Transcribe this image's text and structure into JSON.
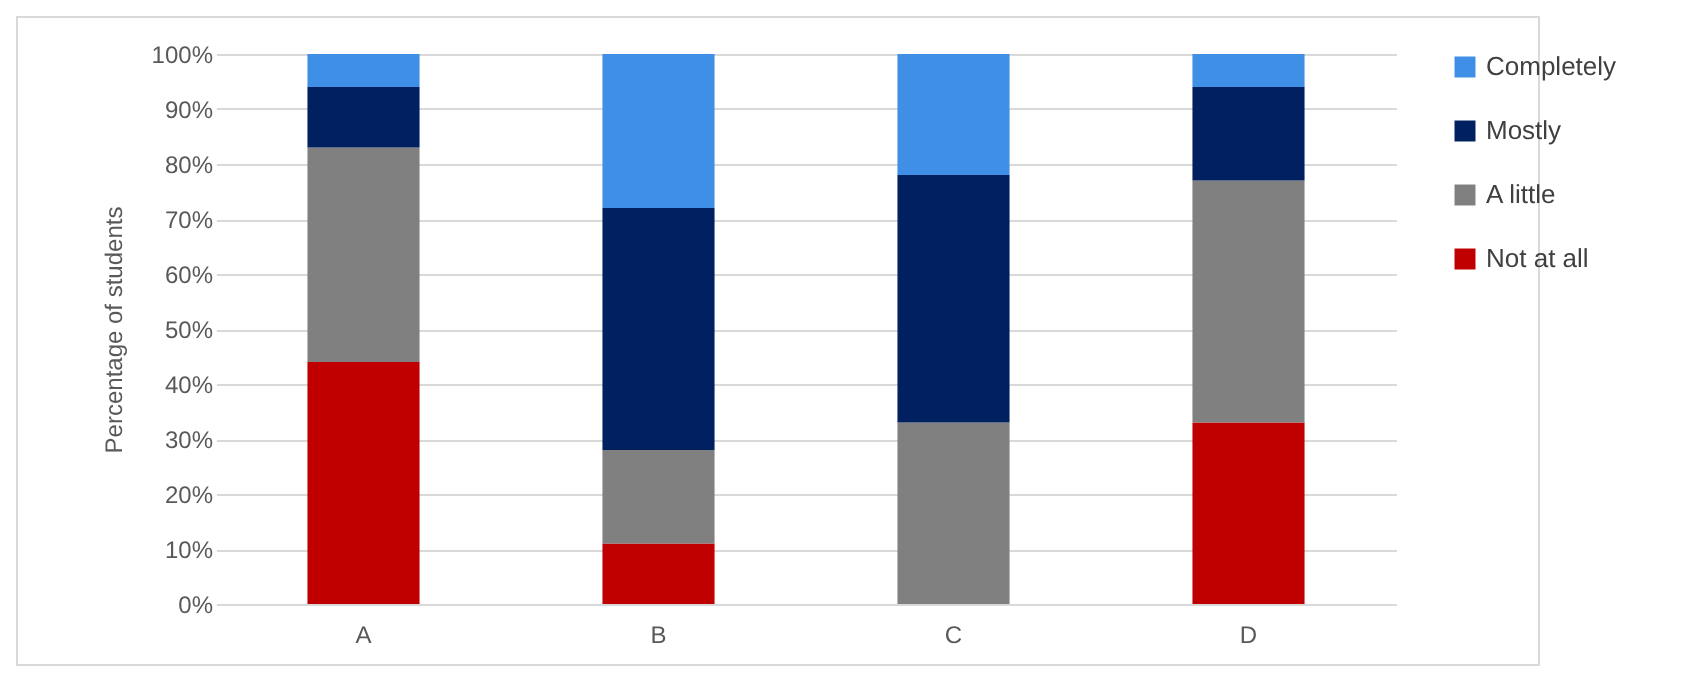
{
  "chart_data": {
    "type": "bar",
    "stacked": true,
    "ylabel": "Percentage of students",
    "categories": [
      "A",
      "B",
      "C",
      "D"
    ],
    "series": [
      {
        "name": "Not at all",
        "color": "#c00000",
        "values": [
          44,
          11,
          0,
          33
        ]
      },
      {
        "name": "A little",
        "color": "#808080",
        "values": [
          39,
          17,
          33,
          44
        ]
      },
      {
        "name": "Mostly",
        "color": "#002060",
        "values": [
          11,
          44,
          45,
          17
        ]
      },
      {
        "name": "Completely",
        "color": "#3f8fe6",
        "values": [
          6,
          28,
          22,
          6
        ]
      }
    ],
    "ylim": [
      0,
      100
    ],
    "yticks": [
      {
        "value": 0,
        "label": "0%"
      },
      {
        "value": 10,
        "label": "10%"
      },
      {
        "value": 20,
        "label": "20%"
      },
      {
        "value": 30,
        "label": "30%"
      },
      {
        "value": 40,
        "label": "40%"
      },
      {
        "value": 50,
        "label": "50%"
      },
      {
        "value": 60,
        "label": "60%"
      },
      {
        "value": 70,
        "label": "70%"
      },
      {
        "value": 80,
        "label": "80%"
      },
      {
        "value": 90,
        "label": "90%"
      },
      {
        "value": 100,
        "label": "100%"
      }
    ],
    "grid": "y",
    "legend": "right"
  }
}
